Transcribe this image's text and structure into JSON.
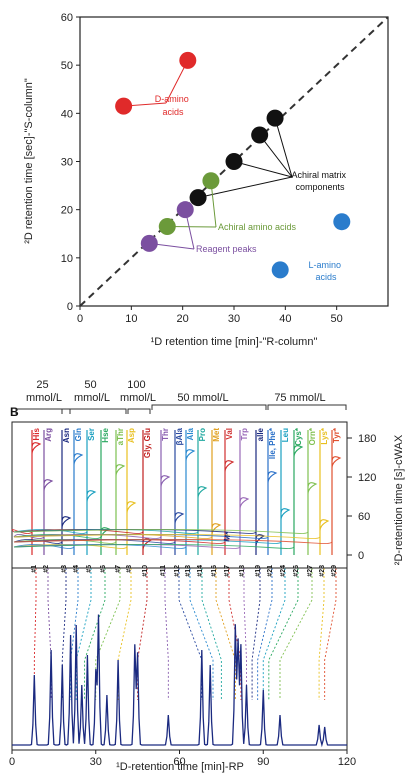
{
  "colors": {
    "d_amino": "#e02a2a",
    "achiral_matrix": "#111111",
    "achiral_amino": "#6b9a3a",
    "reagent": "#7b4fa0",
    "l_amino": "#2a7ccc"
  },
  "chart_data": [
    {
      "type": "scatter",
      "title": "",
      "xlabel": "¹D retention time [min]-\"R-column\"",
      "ylabel": "²D retention time [sec]-\"S-column\"",
      "xlim": [
        0,
        60
      ],
      "ylim": [
        0,
        60
      ],
      "xticks": [
        "0",
        "10",
        "20",
        "30",
        "40",
        "50"
      ],
      "yticks": [
        "0",
        "10",
        "20",
        "30",
        "40",
        "50",
        "60"
      ],
      "series": [
        {
          "name": "D-amino acids",
          "color": "#e02a2a",
          "points": [
            [
              8.5,
              41.5
            ],
            [
              21,
              51
            ]
          ]
        },
        {
          "name": "Achiral matrix components",
          "color": "#111111",
          "points": [
            [
              23,
              22.5
            ],
            [
              30,
              30
            ],
            [
              35,
              35.5
            ],
            [
              38,
              39
            ]
          ]
        },
        {
          "name": "Achiral amino acids",
          "color": "#6b9a3a",
          "points": [
            [
              17,
              16.5
            ],
            [
              25.5,
              26
            ]
          ]
        },
        {
          "name": "Reagent peaks",
          "color": "#7b4fa0",
          "points": [
            [
              13.5,
              13
            ],
            [
              20.5,
              20
            ]
          ]
        },
        {
          "name": "L-amino acids",
          "color": "#2a7ccc",
          "points": [
            [
              39,
              7.5
            ],
            [
              51,
              17.5
            ]
          ]
        }
      ],
      "annotations": [
        {
          "text_lines": [
            "D-amino",
            "acids"
          ],
          "color": "#e02a2a"
        },
        {
          "text_lines": [
            "Achiral matrix",
            "components"
          ],
          "color": "#111111"
        },
        {
          "text_lines": [
            "Achiral amino acids"
          ],
          "color": "#6b9a3a"
        },
        {
          "text_lines": [
            "Reagent peaks"
          ],
          "color": "#7b4fa0"
        },
        {
          "text_lines": [
            "L-amino",
            "acids"
          ],
          "color": "#2a7ccc"
        }
      ]
    },
    {
      "type": "line",
      "panel_label": "B",
      "xlabel": "¹D-retention time [min]-RP",
      "ylabel": "²D-retention time [s]-cWAX",
      "xlim": [
        0,
        120
      ],
      "xticks": [
        "0",
        "30",
        "60",
        "90",
        "120"
      ],
      "y2lim": [
        0,
        200
      ],
      "y2ticks": [
        "0",
        "60",
        "120",
        "180"
      ],
      "gradient_labels": [
        {
          "text_lines": [
            "25",
            "mmol/L"
          ]
        },
        {
          "text_lines": [
            "50",
            "mmol/L"
          ]
        },
        {
          "text_lines": [
            "100",
            "mmol/L"
          ]
        },
        {
          "text_lines": [
            "50 mmol/L"
          ]
        },
        {
          "text_lines": [
            "75 mmol/L"
          ]
        }
      ],
      "amino_acids": [
        {
          "label": "His",
          "color": "#d9282a"
        },
        {
          "label": "Arg",
          "color": "#7b4fa0"
        },
        {
          "label": "Asn",
          "color": "#1b2a80"
        },
        {
          "label": "Gln",
          "color": "#2a7ccc"
        },
        {
          "label": "Ser",
          "color": "#1aa0c0"
        },
        {
          "label": "Hse",
          "color": "#2aa860"
        },
        {
          "label": "aThr",
          "color": "#7dc050"
        },
        {
          "label": "Asp",
          "color": "#e8c020"
        },
        {
          "label": "Gly, Glu",
          "color": "#c02020"
        },
        {
          "label": "Thr",
          "color": "#8a60b0"
        },
        {
          "label": "βAla",
          "color": "#2a4aa0"
        },
        {
          "label": "Ala",
          "color": "#2a8ad0"
        },
        {
          "label": "Pro",
          "color": "#20a8a0"
        },
        {
          "label": "Met",
          "color": "#e0a020"
        },
        {
          "label": "Val",
          "color": "#d03030"
        },
        {
          "label": "Trp",
          "color": "#9a6ab8"
        },
        {
          "label": "alle",
          "color": "#1b2a80"
        },
        {
          "label": "Ile, Phe*",
          "color": "#2a70c8"
        },
        {
          "label": "Leu",
          "color": "#1aa0c0"
        },
        {
          "label": "Cys*",
          "color": "#2aa860"
        },
        {
          "label": "Orn*",
          "color": "#80c050"
        },
        {
          "label": "Lys*",
          "color": "#e8c020"
        },
        {
          "label": "Tyr*",
          "color": "#e05030"
        }
      ],
      "peak_numbers": [
        "#1",
        "#2",
        "#3",
        "#4",
        "#5",
        "#6",
        "#7",
        "#8",
        "#10",
        "#11",
        "#12",
        "#13",
        "#14",
        "#16",
        "#17",
        "#18",
        "#19",
        "#21",
        "#24",
        "#26",
        "#27",
        "#28",
        "#29"
      ],
      "mark_label": "M*"
    }
  ]
}
